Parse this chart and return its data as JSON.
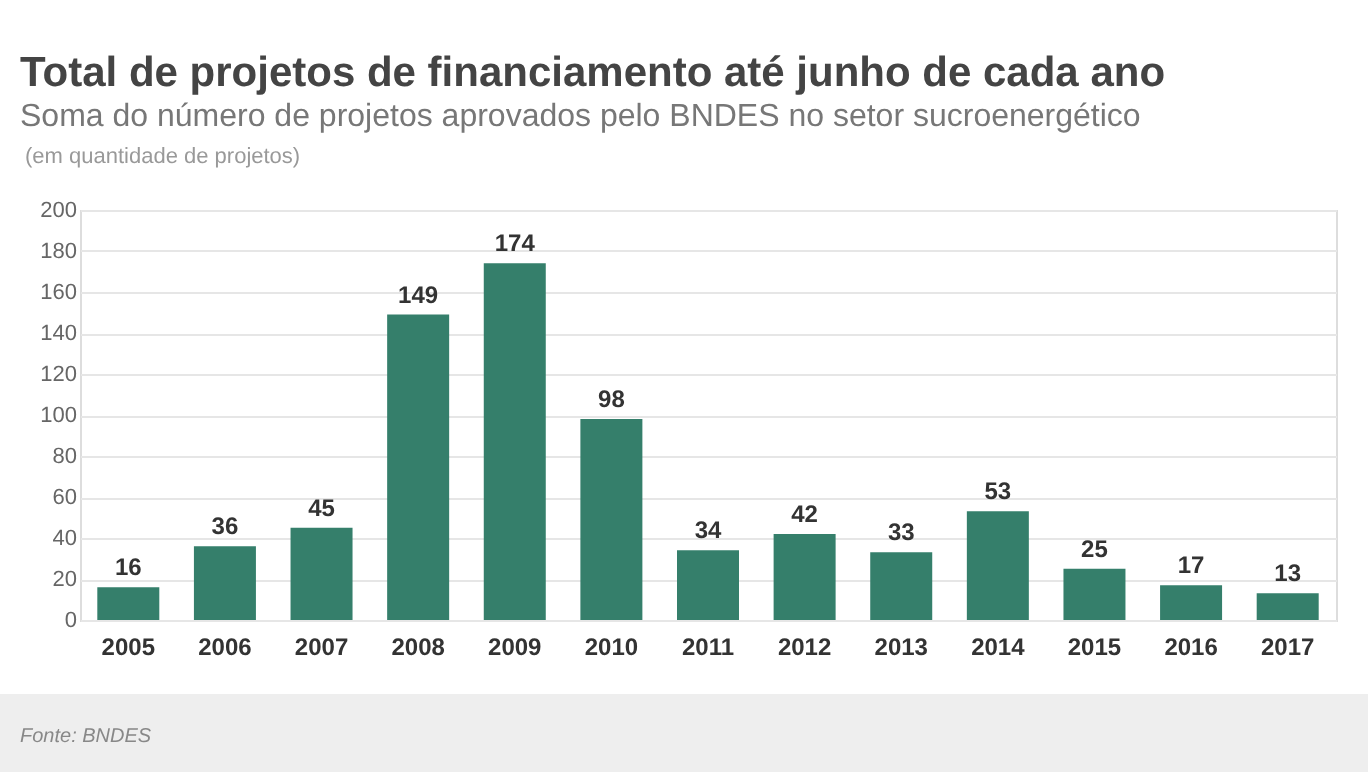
{
  "chart_data": {
    "type": "bar",
    "title": "Total de projetos de financiamento até junho de cada ano",
    "subtitle": "Soma do número de projetos aprovados pelo BNDES no setor sucroenergético",
    "ylabel": "(em quantidade de projetos)",
    "categories": [
      "2005",
      "2006",
      "2007",
      "2008",
      "2009",
      "2010",
      "2011",
      "2012",
      "2013",
      "2014",
      "2015",
      "2016",
      "2017"
    ],
    "values": [
      16,
      36,
      45,
      149,
      174,
      98,
      34,
      42,
      33,
      53,
      25,
      17,
      13
    ],
    "color": "#357f6b",
    "ylim": [
      0,
      200
    ],
    "yticks": [
      0,
      20,
      40,
      60,
      80,
      100,
      120,
      140,
      160,
      180,
      200
    ],
    "grid": "y",
    "data_labels": true,
    "annotations": [
      "Fonte: BNDES"
    ]
  }
}
